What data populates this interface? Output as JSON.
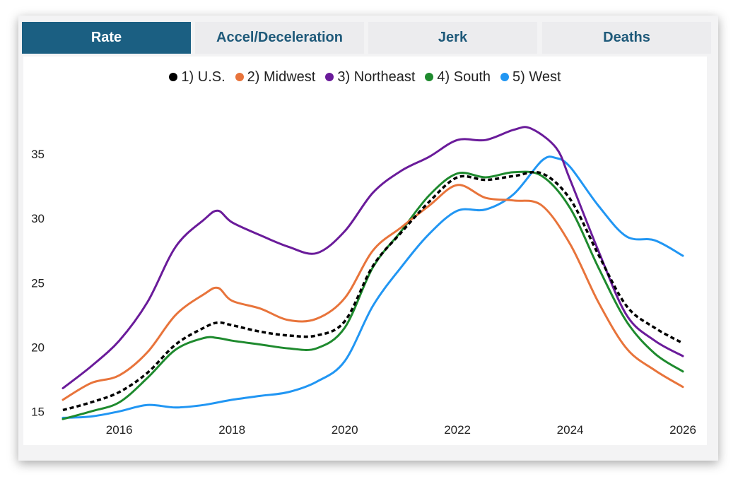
{
  "tabs": [
    {
      "label": "Rate",
      "active": true
    },
    {
      "label": "Accel/Deceleration",
      "active": false
    },
    {
      "label": "Jerk",
      "active": false
    },
    {
      "label": "Deaths",
      "active": false
    }
  ],
  "colors": {
    "tab_active_bg": "#1b5f82",
    "tab_text": "#1f5a7a",
    "us": "#000000",
    "midwest": "#e8743b",
    "northeast": "#6a1b9a",
    "south": "#1e8a2e",
    "west": "#2196f3"
  },
  "chart_data": {
    "type": "line",
    "title": "",
    "xlabel": "",
    "ylabel": "",
    "xlim": [
      2014.95,
      2026.15
    ],
    "ylim": [
      14.3,
      38.2
    ],
    "xticks": [
      2016,
      2018,
      2020,
      2022,
      2024,
      2026
    ],
    "yticks": [
      15,
      20,
      25,
      30,
      35
    ],
    "grid": false,
    "legend_position": "top-center",
    "series": [
      {
        "name": "1) U.S.",
        "color": "#000000",
        "dash": true,
        "x": [
          2015,
          2015.5,
          2016,
          2016.5,
          2017,
          2017.5,
          2017.75,
          2018,
          2018.5,
          2019,
          2019.5,
          2020,
          2020.5,
          2021,
          2021.5,
          2022,
          2022.5,
          2023,
          2023.5,
          2024,
          2024.5,
          2025,
          2025.5,
          2026
        ],
        "y": [
          15.1,
          15.7,
          16.5,
          18.0,
          20.2,
          21.5,
          21.9,
          21.7,
          21.2,
          20.9,
          20.9,
          22.0,
          26.3,
          28.9,
          31.3,
          33.2,
          33.0,
          33.3,
          33.5,
          31.5,
          27.2,
          23.2,
          21.5,
          20.3
        ]
      },
      {
        "name": "2) Midwest",
        "color": "#e8743b",
        "x": [
          2015,
          2015.5,
          2016,
          2016.5,
          2017,
          2017.5,
          2017.75,
          2018,
          2018.5,
          2019,
          2019.5,
          2020,
          2020.5,
          2021,
          2021.5,
          2022,
          2022.5,
          2023,
          2023.5,
          2024,
          2024.5,
          2025,
          2025.5,
          2026
        ],
        "y": [
          15.9,
          17.2,
          17.8,
          19.6,
          22.5,
          24.1,
          24.6,
          23.6,
          23.0,
          22.1,
          22.2,
          23.8,
          27.5,
          29.3,
          31.0,
          32.6,
          31.6,
          31.4,
          31.0,
          28.0,
          23.5,
          19.9,
          18.2,
          16.9
        ]
      },
      {
        "name": "3) Northeast",
        "color": "#6a1b9a",
        "x": [
          2015,
          2015.5,
          2016,
          2016.5,
          2017,
          2017.5,
          2017.75,
          2018,
          2018.5,
          2019,
          2019.5,
          2020,
          2020.5,
          2021,
          2021.5,
          2022,
          2022.5,
          2023,
          2023.3,
          2023.75,
          2024,
          2024.5,
          2025,
          2025.5,
          2026
        ],
        "y": [
          16.8,
          18.5,
          20.5,
          23.5,
          27.8,
          29.9,
          30.6,
          29.7,
          28.7,
          27.8,
          27.3,
          29.0,
          32.0,
          33.7,
          34.8,
          36.1,
          36.1,
          36.9,
          37.0,
          35.5,
          33.0,
          27.5,
          22.5,
          20.5,
          19.3
        ]
      },
      {
        "name": "4) South",
        "color": "#1e8a2e",
        "x": [
          2015,
          2015.5,
          2016,
          2016.5,
          2017,
          2017.5,
          2017.75,
          2018,
          2018.5,
          2019,
          2019.5,
          2020,
          2020.5,
          2021,
          2021.5,
          2022,
          2022.5,
          2023,
          2023.5,
          2024,
          2024.5,
          2025,
          2025.5,
          2026
        ],
        "y": [
          14.4,
          15.0,
          15.7,
          17.6,
          19.8,
          20.7,
          20.7,
          20.5,
          20.2,
          19.9,
          19.9,
          21.5,
          26.2,
          29.0,
          31.8,
          33.5,
          33.2,
          33.6,
          33.3,
          30.8,
          26.2,
          22.0,
          19.5,
          18.1
        ]
      },
      {
        "name": "5) West",
        "color": "#2196f3",
        "x": [
          2015,
          2015.5,
          2016,
          2016.5,
          2017,
          2017.5,
          2018,
          2018.5,
          2019,
          2019.5,
          2020,
          2020.5,
          2021,
          2021.5,
          2022,
          2022.5,
          2023,
          2023.5,
          2023.75,
          2024,
          2024.5,
          2025,
          2025.5,
          2026
        ],
        "y": [
          14.5,
          14.6,
          15.0,
          15.5,
          15.3,
          15.5,
          15.9,
          16.2,
          16.5,
          17.3,
          18.9,
          23.2,
          26.2,
          28.8,
          30.6,
          30.7,
          31.9,
          34.5,
          34.7,
          34.0,
          31.0,
          28.6,
          28.3,
          27.1
        ]
      }
    ]
  }
}
